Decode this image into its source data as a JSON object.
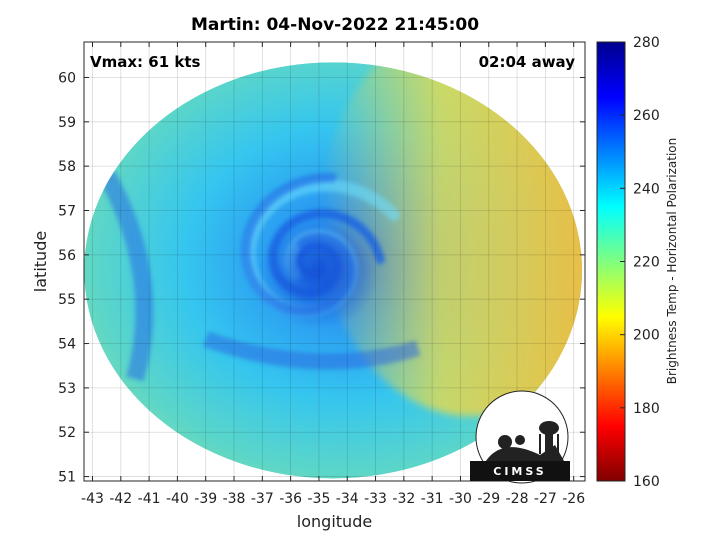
{
  "chart_data": {
    "type": "heatmap",
    "title": "Martin: 04-Nov-2022 21:45:00",
    "xlabel": "longitude",
    "ylabel": "latitude",
    "xlim": [
      -43.3,
      -25.6
    ],
    "ylim": [
      50.9,
      60.8
    ],
    "x_ticks": [
      "-43",
      "-42",
      "-41",
      "-40",
      "-39",
      "-38",
      "-37",
      "-36",
      "-35",
      "-34",
      "-33",
      "-32",
      "-31",
      "-30",
      "-29",
      "-28",
      "-27",
      "-26"
    ],
    "y_ticks": [
      "51",
      "52",
      "53",
      "54",
      "55",
      "56",
      "57",
      "58",
      "59",
      "60"
    ],
    "grid": true,
    "swath_center": {
      "lon": -34.5,
      "lat": 55.65
    },
    "storm_center": {
      "lon": -35.2,
      "lat": 55.8
    },
    "annotations": {
      "vmax": "Vmax: 61 kts",
      "time_offset": "02:04 away"
    },
    "colorbar": {
      "label": "Brightness Temp - Horizontal Polarization",
      "range": [
        160,
        280
      ],
      "ticks": [
        "280",
        "260",
        "240",
        "220",
        "200",
        "180",
        "160"
      ],
      "colormap": "jet"
    },
    "logo": "CIMSS"
  },
  "colors": {
    "ring": "#2aa0ff",
    "core": "#1a5be0",
    "warm_sector": "#f3d23a",
    "background": "#ffffff"
  }
}
